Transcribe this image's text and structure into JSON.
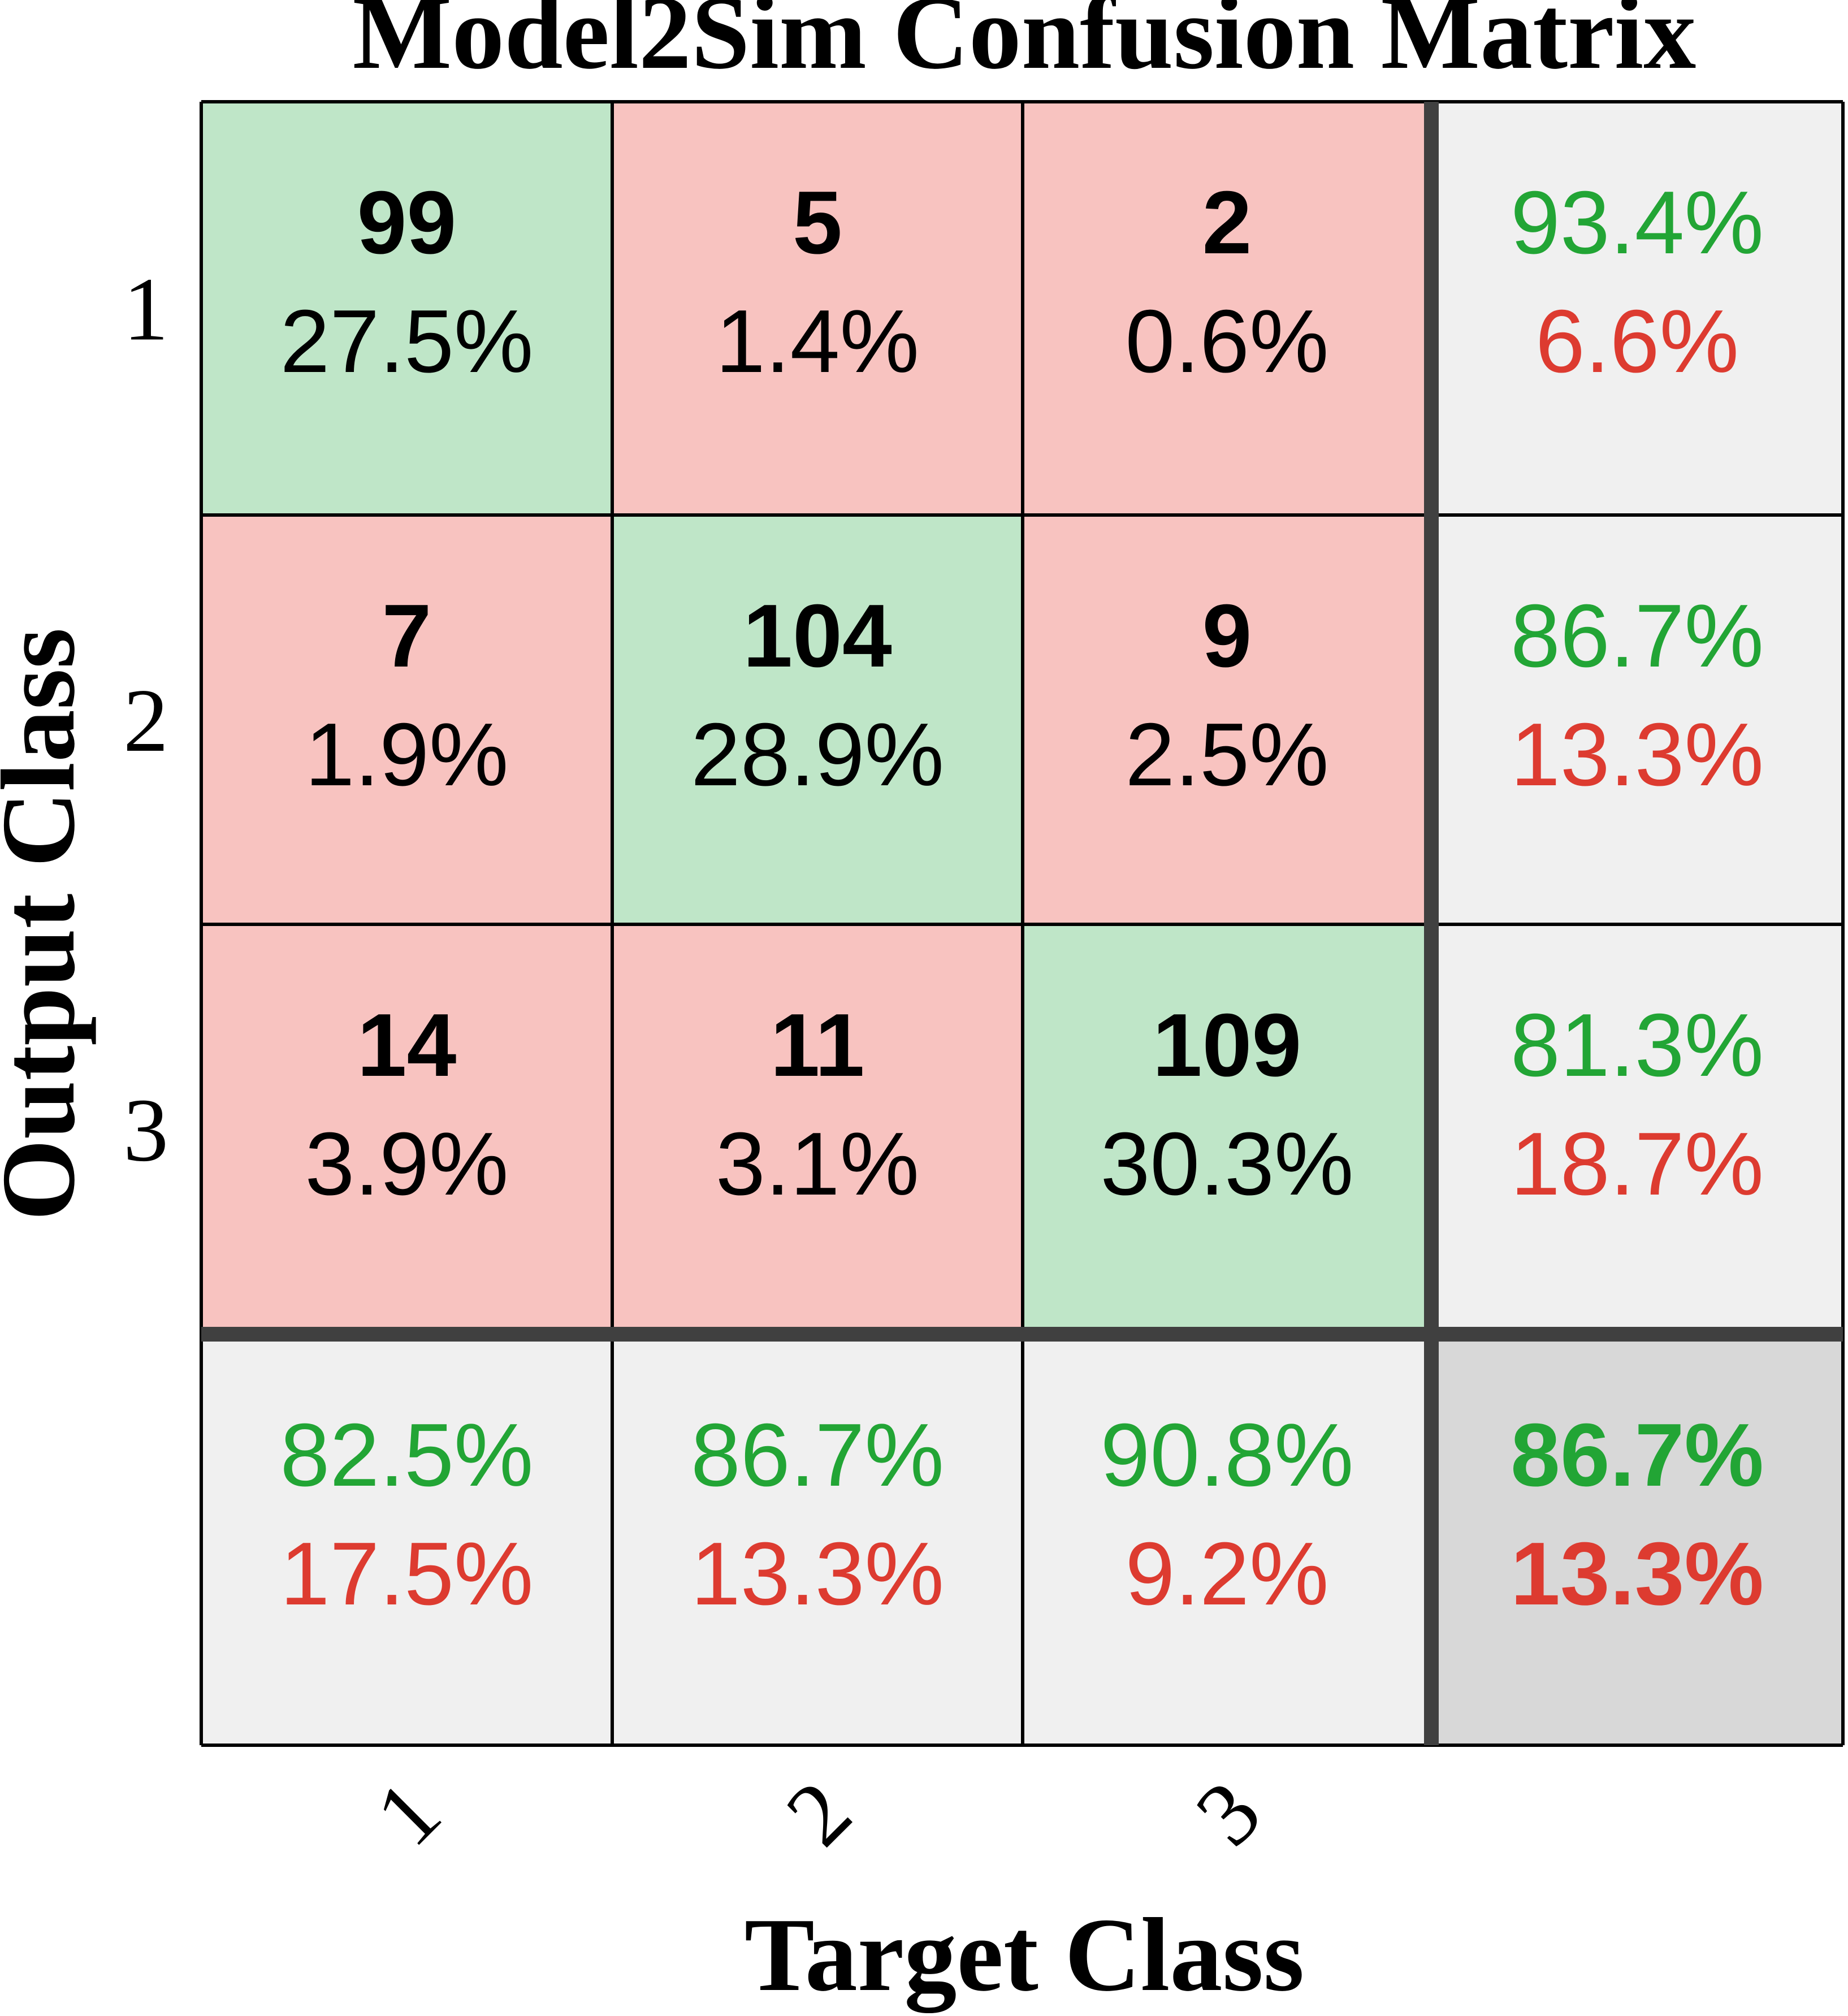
{
  "chart_data": {
    "type": "heatmap",
    "title": "Model2Sim Confusion Matrix",
    "xlabel": "Target Class",
    "ylabel": "Output Class",
    "x_tick_labels": [
      "1",
      "2",
      "3"
    ],
    "y_tick_labels": [
      "1",
      "2",
      "3"
    ],
    "matrix": {
      "counts": [
        [
          99,
          5,
          2
        ],
        [
          7,
          104,
          9
        ],
        [
          14,
          11,
          109
        ]
      ],
      "percents": [
        [
          "27.5%",
          "1.4%",
          "0.6%"
        ],
        [
          "1.9%",
          "28.9%",
          "2.5%"
        ],
        [
          "3.9%",
          "3.1%",
          "30.3%"
        ]
      ]
    },
    "row_summary": [
      {
        "correct": "93.4%",
        "incorrect": "6.6%"
      },
      {
        "correct": "86.7%",
        "incorrect": "13.3%"
      },
      {
        "correct": "81.3%",
        "incorrect": "18.7%"
      }
    ],
    "column_summary": [
      {
        "correct": "82.5%",
        "incorrect": "17.5%"
      },
      {
        "correct": "86.7%",
        "incorrect": "13.3%"
      },
      {
        "correct": "90.8%",
        "incorrect": "9.2%"
      }
    ],
    "overall": {
      "correct": "86.7%",
      "incorrect": "13.3%"
    },
    "colors": {
      "diagonal_fill": "#bfe6c8",
      "off_diagonal_fill": "#f8c3c0",
      "summary_fill": "#f0f0f0",
      "overall_fill": "#d8d8d8",
      "correct_text": "#22a535",
      "incorrect_text": "#dd3b30",
      "count_text": "#000000",
      "grid_line": "#000000",
      "separator_line": "#404040"
    }
  }
}
